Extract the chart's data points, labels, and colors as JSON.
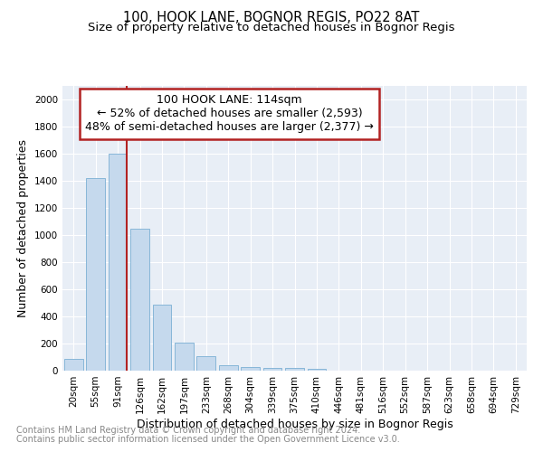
{
  "title": "100, HOOK LANE, BOGNOR REGIS, PO22 8AT",
  "subtitle": "Size of property relative to detached houses in Bognor Regis",
  "xlabel": "Distribution of detached houses by size in Bognor Regis",
  "ylabel": "Number of detached properties",
  "footnote1": "Contains HM Land Registry data © Crown copyright and database right 2024.",
  "footnote2": "Contains public sector information licensed under the Open Government Licence v3.0.",
  "bar_labels": [
    "20sqm",
    "55sqm",
    "91sqm",
    "126sqm",
    "162sqm",
    "197sqm",
    "233sqm",
    "268sqm",
    "304sqm",
    "339sqm",
    "375sqm",
    "410sqm",
    "446sqm",
    "481sqm",
    "516sqm",
    "552sqm",
    "587sqm",
    "623sqm",
    "658sqm",
    "694sqm",
    "729sqm"
  ],
  "bar_values": [
    88,
    1420,
    1600,
    1050,
    490,
    205,
    105,
    40,
    30,
    22,
    20,
    15,
    0,
    0,
    0,
    0,
    0,
    0,
    0,
    0,
    0
  ],
  "bar_color": "#c5d9ed",
  "bar_edgecolor": "#7aafd4",
  "annotation_line1": "100 HOOK LANE: 114sqm",
  "annotation_line2": "← 52% of detached houses are smaller (2,593)",
  "annotation_line3": "48% of semi-detached houses are larger (2,377) →",
  "vline_x": 2.4,
  "vline_color": "#b22222",
  "annotation_box_color": "#b22222",
  "ylim": [
    0,
    2100
  ],
  "yticks": [
    0,
    200,
    400,
    600,
    800,
    1000,
    1200,
    1400,
    1600,
    1800,
    2000
  ],
  "bg_color": "#e8eef6",
  "grid_color": "#ffffff",
  "title_fontsize": 10.5,
  "subtitle_fontsize": 9.5,
  "axis_label_fontsize": 9,
  "tick_fontsize": 7.5,
  "annotation_fontsize": 9,
  "footnote_fontsize": 7
}
